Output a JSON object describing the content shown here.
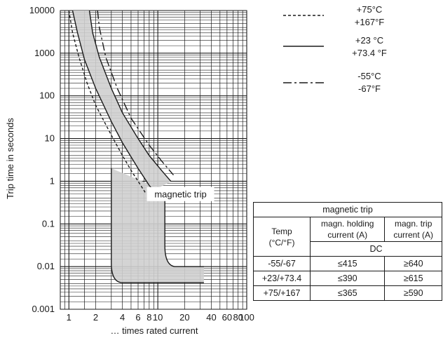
{
  "chart_data": {
    "type": "line",
    "title": "",
    "ylabel": "Trip time in seconds",
    "xlabel": "… times rated current",
    "x_scale": "log",
    "y_scale": "log",
    "xlim": [
      0.8,
      100
    ],
    "ylim": [
      0.001,
      10000
    ],
    "grid": true,
    "x_ticks": [
      {
        "value": 1,
        "label": "1"
      },
      {
        "value": 2,
        "label": "2"
      },
      {
        "value": 4,
        "label": "4"
      },
      {
        "value": 6,
        "label": "6"
      },
      {
        "value": 8,
        "label": "8"
      },
      {
        "value": 10,
        "label": "10"
      },
      {
        "value": 20,
        "label": "20"
      },
      {
        "value": 40,
        "label": "40"
      },
      {
        "value": 60,
        "label": "60"
      },
      {
        "value": 80,
        "label": "80"
      },
      {
        "value": 100,
        "label": "100"
      }
    ],
    "y_ticks": [
      {
        "value": 0.001,
        "label": "0.001"
      },
      {
        "value": 0.01,
        "label": "0.01"
      },
      {
        "value": 0.1,
        "label": "0.1"
      },
      {
        "value": 1,
        "label": "1"
      },
      {
        "value": 10,
        "label": "10"
      },
      {
        "value": 100,
        "label": "100"
      },
      {
        "value": 1000,
        "label": "1000"
      },
      {
        "value": 10000,
        "label": "10000"
      }
    ],
    "legend": [
      {
        "style": "dotted",
        "labels": [
          "+75°C",
          "+167°F"
        ]
      },
      {
        "style": "solid",
        "labels": [
          "+23 °C",
          "+73.4 °F"
        ]
      },
      {
        "style": "dashdot",
        "labels": [
          "-55°C",
          "-67°F"
        ]
      }
    ],
    "series": [
      {
        "style": "dotted",
        "points": [
          [
            1.0,
            10000
          ],
          [
            1.1,
            3000
          ],
          [
            1.3,
            800
          ],
          [
            1.6,
            200
          ],
          [
            2.0,
            60
          ],
          [
            3.0,
            12
          ],
          [
            4.0,
            4
          ],
          [
            5.0,
            1.8
          ],
          [
            6.0,
            1
          ],
          [
            7.2,
            0.55
          ]
        ]
      },
      {
        "style": "solid",
        "points": [
          [
            1.1,
            10000
          ],
          [
            1.25,
            3000
          ],
          [
            1.5,
            700
          ],
          [
            2.0,
            150
          ],
          [
            3.0,
            25
          ],
          [
            4.0,
            8
          ],
          [
            6.0,
            2
          ],
          [
            8.0,
            0.8
          ],
          [
            9.0,
            0.6
          ]
        ]
      },
      {
        "style": "solid",
        "points": [
          [
            1.7,
            10000
          ],
          [
            1.85,
            3000
          ],
          [
            2.2,
            800
          ],
          [
            3.0,
            150
          ],
          [
            4.0,
            40
          ],
          [
            6.0,
            10
          ],
          [
            8.0,
            4
          ],
          [
            11.0,
            1.8
          ],
          [
            14.0,
            1
          ]
        ]
      },
      {
        "style": "dashdot",
        "points": [
          [
            2.1,
            10000
          ],
          [
            2.2,
            4000
          ],
          [
            2.6,
            800
          ],
          [
            3.5,
            150
          ],
          [
            5.0,
            30
          ],
          [
            8.0,
            7
          ],
          [
            11.0,
            3
          ],
          [
            15.0,
            1.4
          ]
        ]
      }
    ],
    "trip_band": {
      "upper": [
        [
          1.1,
          10000
        ],
        [
          1.25,
          3000
        ],
        [
          1.5,
          700
        ],
        [
          2.0,
          150
        ],
        [
          3.0,
          25
        ],
        [
          4.0,
          8
        ],
        [
          6.0,
          2
        ],
        [
          8.0,
          0.8
        ],
        [
          9.0,
          0.6
        ]
      ],
      "lower": [
        [
          1.7,
          10000
        ],
        [
          1.85,
          3000
        ],
        [
          2.2,
          800
        ],
        [
          3.0,
          150
        ],
        [
          4.0,
          40
        ],
        [
          6.0,
          10
        ],
        [
          8.0,
          4
        ],
        [
          11.0,
          1.8
        ],
        [
          14.0,
          1
        ]
      ]
    },
    "magnetic_band": {
      "left_x": 3.0,
      "left_top_y": 2,
      "right_x": 12.0,
      "right_top_y": 0.6,
      "upper_tail_y": 0.01,
      "lower_tail_y": 0.0042,
      "end_x": 33
    },
    "annotations": [
      {
        "text": "magnetic trip",
        "x": 18,
        "y": 0.5
      }
    ]
  },
  "table": {
    "title": "magnetic trip",
    "col_temp": [
      "Temp",
      "(°C/°F)"
    ],
    "col_holding": [
      "magn. holding",
      "current (A)"
    ],
    "col_trip": [
      "magn. trip",
      "current (A)"
    ],
    "subheader": "DC",
    "rows": [
      {
        "temp": "-55/-67",
        "holding": "≤415",
        "trip": "≥640"
      },
      {
        "temp": "+23/+73.4",
        "holding": "≤390",
        "trip": "≥615"
      },
      {
        "temp": "+75/+167",
        "holding": "≤365",
        "trip": "≥590"
      }
    ]
  }
}
